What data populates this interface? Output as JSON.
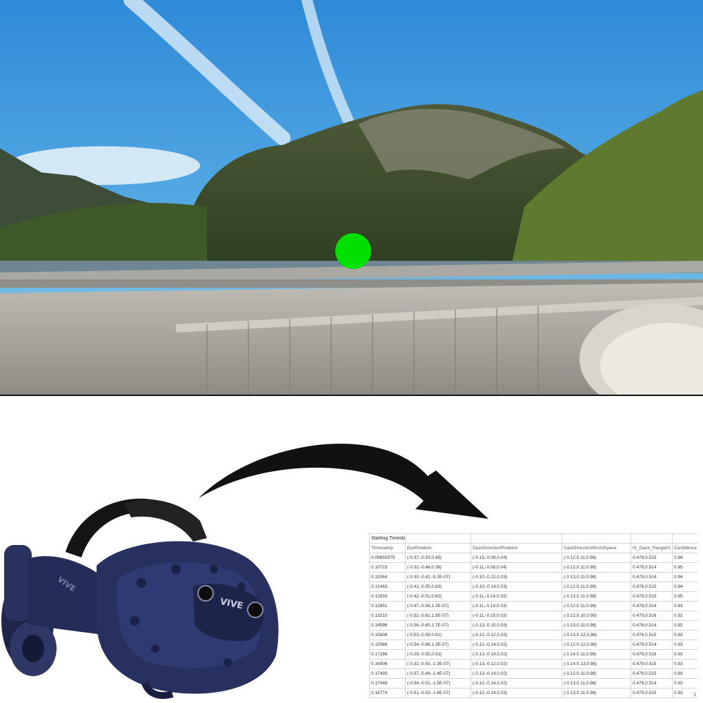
{
  "spreadsheet": {
    "title": "Starting Timestamp",
    "columns": [
      "Timestamp",
      "EyeRotation",
      "GazeDirectionRotation",
      "GazeDirectionWorldSpace",
      "IV_Gaze_Range01",
      "Confidence"
    ],
    "rows": [
      [
        "0.09655975",
        "(-0.37,-0.53,0.45)",
        "(-0.15,-0.08,0.04)",
        "(-0.12,0.11,0.98)",
        "0.479,0.515",
        "0.94"
      ],
      [
        "0.10723",
        "(-0.32,-0.48,0.38)",
        "(-0.11,-0.08,0.04)",
        "(-0.12,0.11,0.98)",
        "0.478,0.514",
        "0.95"
      ],
      [
        "0.12064",
        "(-0.30,-0.42,-5.2E-07)",
        "(-0.10,-0.12,0.03)",
        "(-0.13,0.11,0.98)",
        "0.479,0.514",
        "0.94"
      ],
      [
        "0.12463",
        "(-0.41,-0.55,0.63)",
        "(-0.10,-0.14,0.03)",
        "(-0.12,0.11,0.98)",
        "0.478,0.515",
        "0.94"
      ],
      [
        "0.12633",
        "(-0.42,-0.51,0.62)",
        "(-0.11,-0.14,0.02)",
        "(-0.13,0.11,0.98)",
        "0.479,0.515",
        "0.95"
      ],
      [
        "0.12852",
        "(-0.47,-0.56,1.2E-07)",
        "(-0.11,-0.14,0.03)",
        "(-0.12,0.11,0.98)",
        "0.478,0.514",
        "0.93"
      ],
      [
        "0.13210",
        "(-0.52,-0.61,1.5E-07)",
        "(-0.11,-0.15,0.03)",
        "(-0.12,0.10,0.98)",
        "0.479,0.516",
        "0.92"
      ],
      [
        "0.14598",
        "(-0.56,-0.60,1.7E-07)",
        "(-0.13,-0.15,0.03)",
        "(-0.13,0.11,0.98)",
        "0.478,0.514",
        "0.92"
      ],
      [
        "0.15836",
        "(-0.53,-0.59,0.61)",
        "(-0.12,-0.12,0.03)",
        "(-0.13,0.12,0.98)",
        "0.478,0.515",
        "0.93"
      ],
      [
        "0.15986",
        "(-0.54,-0.66,1.3E-07)",
        "(-0.12,-0.14,0.02)",
        "(-0.12,0.12,0.98)",
        "0.479,0.514",
        "0.93"
      ],
      [
        "0.17286",
        "(-0.29,-0.55,0.53)",
        "(-0.13,-0.14,0.02)",
        "(-0.14,0.11,0.98)",
        "0.479,0.516",
        "0.93"
      ],
      [
        "0.16906",
        "(-0.32,-0.50,-1.3E-07)",
        "(-0.13,-0.12,0.02)",
        "(-0.14,0.13,0.98)",
        "0.479,0.515",
        "0.93"
      ],
      [
        "0.17493",
        "(-0.57,-0.48,-1.4E-07)",
        "(-0.13,-0.14,0.02)",
        "(-0.12,0.11,0.98)",
        "0.478,0.515",
        "0.93"
      ],
      [
        "0.17448",
        "(-0.54,-0.51,-1.5E-07)",
        "(-0.12,-0.14,0.02)",
        "(-0.13,0.11,0.98)",
        "0.478,0.514",
        "0.93"
      ],
      [
        "0.18774",
        "(-0.51,-0.53,-1.6E-07)",
        "(-0.12,-0.14,0.03)",
        "(-0.13,0.11,0.98)",
        "0.479,0.515",
        "0.93"
      ]
    ],
    "page_number": "1"
  },
  "headset": {
    "brand_front": "VIVE",
    "brand_side": "VIVE"
  },
  "colors": {
    "gaze_marker": "#00e000",
    "headset": "#27305e",
    "arrow": "#111111"
  }
}
